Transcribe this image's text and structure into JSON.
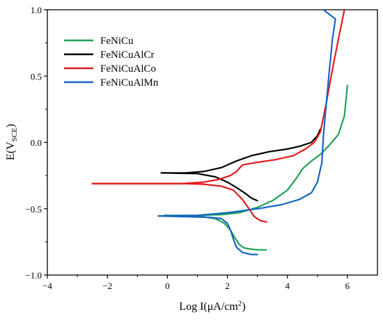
{
  "chart_data": {
    "type": "line",
    "title": "",
    "xlabel": "Log I(μA/cm²)",
    "ylabel": "E(V_SCE)",
    "xlim": [
      -4,
      7
    ],
    "ylim": [
      -1.0,
      1.0
    ],
    "x_ticks": [
      -4,
      -2,
      0,
      2,
      4,
      6
    ],
    "y_ticks": [
      -1.0,
      -0.5,
      0.0,
      0.5,
      1.0
    ],
    "x_tick_labels": [
      "−4",
      "−2",
      "0",
      "2",
      "4",
      "6"
    ],
    "y_tick_labels": [
      "−1.0",
      "−0.5",
      "0.0",
      "0.5",
      "1.0"
    ],
    "grid": false,
    "legend_position": "top-left",
    "series": [
      {
        "name": "FeNiCu",
        "color": "#1fa05a",
        "cathodic": [
          [
            -0.1,
            -0.55
          ],
          [
            0.6,
            -0.555
          ],
          [
            1.2,
            -0.56
          ],
          [
            1.6,
            -0.575
          ],
          [
            1.9,
            -0.61
          ],
          [
            2.1,
            -0.66
          ],
          [
            2.25,
            -0.72
          ],
          [
            2.4,
            -0.77
          ],
          [
            2.55,
            -0.795
          ],
          [
            2.8,
            -0.805
          ],
          [
            3.0,
            -0.81
          ],
          [
            3.3,
            -0.81
          ]
        ],
        "anodic": [
          [
            -0.1,
            -0.55
          ],
          [
            1.0,
            -0.55
          ],
          [
            1.8,
            -0.545
          ],
          [
            2.4,
            -0.53
          ],
          [
            3.0,
            -0.49
          ],
          [
            3.5,
            -0.44
          ],
          [
            4.0,
            -0.36
          ],
          [
            4.3,
            -0.27
          ],
          [
            4.5,
            -0.2
          ],
          [
            4.8,
            -0.14
          ],
          [
            5.1,
            -0.09
          ],
          [
            5.4,
            -0.02
          ],
          [
            5.7,
            0.06
          ],
          [
            5.9,
            0.2
          ],
          [
            6.0,
            0.43
          ]
        ]
      },
      {
        "name": "FeNiCuAlCr",
        "color": "#000000",
        "cathodic": [
          [
            -0.2,
            -0.23
          ],
          [
            1.0,
            -0.235
          ],
          [
            1.6,
            -0.26
          ],
          [
            2.0,
            -0.3
          ],
          [
            2.3,
            -0.34
          ],
          [
            2.6,
            -0.385
          ],
          [
            2.8,
            -0.42
          ],
          [
            3.0,
            -0.44
          ]
        ],
        "anodic": [
          [
            -0.2,
            -0.23
          ],
          [
            0.6,
            -0.23
          ],
          [
            1.2,
            -0.22
          ],
          [
            1.8,
            -0.19
          ],
          [
            2.3,
            -0.14
          ],
          [
            2.8,
            -0.1
          ],
          [
            3.4,
            -0.07
          ],
          [
            4.0,
            -0.05
          ],
          [
            4.4,
            -0.03
          ],
          [
            4.8,
            0.0
          ],
          [
            5.0,
            0.05
          ],
          [
            5.1,
            0.1
          ]
        ]
      },
      {
        "name": "FeNiCuAlCo",
        "color": "#e31a1c",
        "cathodic": [
          [
            -2.5,
            -0.31
          ],
          [
            0.5,
            -0.31
          ],
          [
            1.2,
            -0.315
          ],
          [
            1.8,
            -0.33
          ],
          [
            2.2,
            -0.36
          ],
          [
            2.5,
            -0.43
          ],
          [
            2.75,
            -0.51
          ],
          [
            2.9,
            -0.56
          ],
          [
            3.1,
            -0.59
          ],
          [
            3.3,
            -0.6
          ]
        ],
        "anodic": [
          [
            -2.5,
            -0.31
          ],
          [
            0.5,
            -0.31
          ],
          [
            1.2,
            -0.3
          ],
          [
            1.7,
            -0.28
          ],
          [
            2.1,
            -0.25
          ],
          [
            2.3,
            -0.22
          ],
          [
            2.5,
            -0.17
          ],
          [
            3.0,
            -0.15
          ],
          [
            3.6,
            -0.13
          ],
          [
            4.2,
            -0.1
          ],
          [
            4.6,
            -0.05
          ],
          [
            4.9,
            0.0
          ],
          [
            5.1,
            0.08
          ],
          [
            5.3,
            0.3
          ],
          [
            5.5,
            0.55
          ],
          [
            5.7,
            0.78
          ],
          [
            5.9,
            1.0
          ]
        ]
      },
      {
        "name": "FeNiCuAlMn",
        "color": "#1565c0",
        "cathodic": [
          [
            -0.3,
            -0.555
          ],
          [
            0.6,
            -0.56
          ],
          [
            1.4,
            -0.565
          ],
          [
            1.8,
            -0.575
          ],
          [
            2.0,
            -0.61
          ],
          [
            2.1,
            -0.66
          ],
          [
            2.2,
            -0.73
          ],
          [
            2.3,
            -0.79
          ],
          [
            2.5,
            -0.83
          ],
          [
            2.8,
            -0.845
          ],
          [
            3.0,
            -0.845
          ]
        ],
        "anodic": [
          [
            -0.3,
            -0.555
          ],
          [
            1.0,
            -0.55
          ],
          [
            2.0,
            -0.53
          ],
          [
            3.0,
            -0.5
          ],
          [
            3.8,
            -0.47
          ],
          [
            4.4,
            -0.43
          ],
          [
            4.8,
            -0.38
          ],
          [
            5.0,
            -0.3
          ],
          [
            5.15,
            -0.15
          ],
          [
            5.2,
            0.05
          ],
          [
            5.3,
            0.3
          ],
          [
            5.4,
            0.55
          ],
          [
            5.5,
            0.78
          ],
          [
            5.6,
            0.93
          ],
          [
            5.2,
            1.0
          ]
        ]
      }
    ]
  }
}
